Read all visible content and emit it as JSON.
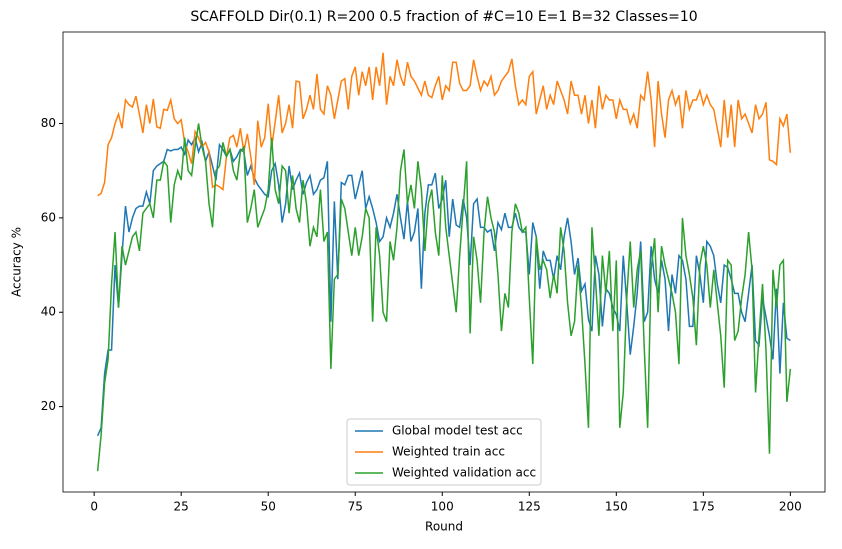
{
  "chart_data": {
    "type": "line",
    "title": "SCAFFOLD Dir(0.1) R=200 0.5 fraction of #C=10 E=1 B=32  Classes=10",
    "x_label": "Round",
    "y_label": "Accuracy %",
    "x": [
      1,
      2,
      3,
      4,
      5,
      6,
      7,
      8,
      9,
      10,
      11,
      12,
      13,
      14,
      15,
      16,
      17,
      18,
      19,
      20,
      21,
      22,
      23,
      24,
      25,
      26,
      27,
      28,
      29,
      30,
      31,
      32,
      33,
      34,
      35,
      36,
      37,
      38,
      39,
      40,
      41,
      42,
      43,
      44,
      45,
      46,
      47,
      48,
      49,
      50,
      51,
      52,
      53,
      54,
      55,
      56,
      57,
      58,
      59,
      60,
      61,
      62,
      63,
      64,
      65,
      66,
      67,
      68,
      69,
      70,
      71,
      72,
      73,
      74,
      75,
      76,
      77,
      78,
      79,
      80,
      81,
      82,
      83,
      84,
      85,
      86,
      87,
      88,
      89,
      90,
      91,
      92,
      93,
      94,
      95,
      96,
      97,
      98,
      99,
      100,
      101,
      102,
      103,
      104,
      105,
      106,
      107,
      108,
      109,
      110,
      111,
      112,
      113,
      114,
      115,
      116,
      117,
      118,
      119,
      120,
      121,
      122,
      123,
      124,
      125,
      126,
      127,
      128,
      129,
      130,
      131,
      132,
      133,
      134,
      135,
      136,
      137,
      138,
      139,
      140,
      141,
      142,
      143,
      144,
      145,
      146,
      147,
      148,
      149,
      150,
      151,
      152,
      153,
      154,
      155,
      156,
      157,
      158,
      159,
      160,
      161,
      162,
      163,
      164,
      165,
      166,
      167,
      168,
      169,
      170,
      171,
      172,
      173,
      174,
      175,
      176,
      177,
      178,
      179,
      180,
      181,
      182,
      183,
      184,
      185,
      186,
      187,
      188,
      189,
      190,
      191,
      192,
      193,
      194,
      195,
      196,
      197,
      198,
      199,
      200
    ],
    "series": [
      {
        "name": "Global model test acc",
        "color": "#1f77b4",
        "values": [
          13.8,
          15.5,
          27,
          32,
          32,
          50,
          41,
          52,
          62.5,
          57,
          60,
          62,
          62.5,
          62.5,
          65.5,
          63,
          70,
          71,
          71.5,
          72,
          74.5,
          74.2,
          74.5,
          74.5,
          75,
          73.5,
          76.5,
          75.5,
          77,
          74,
          76,
          72,
          74,
          71,
          68,
          75.5,
          74.5,
          73,
          74.5,
          72,
          73,
          74.5,
          74,
          69,
          71,
          68.5,
          67,
          66,
          65,
          64.5,
          70,
          71.5,
          67,
          59,
          63,
          71,
          66,
          68,
          69.5,
          65,
          67.5,
          69,
          65,
          66,
          68,
          68.5,
          72,
          38,
          63.5,
          47,
          67.5,
          67,
          69,
          69,
          64,
          67,
          70,
          62,
          64.5,
          62,
          59,
          55,
          56,
          60,
          58,
          61,
          65,
          60,
          55.5,
          63.5,
          55,
          57,
          62,
          45,
          61,
          67,
          67,
          69.5,
          62,
          64,
          68,
          56,
          64,
          58.5,
          58,
          64,
          60,
          50,
          63,
          64,
          58,
          58,
          57,
          57.5,
          53,
          59,
          57.5,
          61,
          58,
          58,
          61,
          58,
          57,
          57,
          48,
          59,
          56,
          45,
          53,
          51,
          51,
          47,
          52,
          49,
          56,
          60,
          55,
          48,
          51.5,
          44.5,
          46,
          38.5,
          36,
          52,
          48,
          37,
          45,
          44,
          41,
          39.5,
          36,
          52,
          42,
          31,
          37,
          44,
          55,
          38,
          40,
          54,
          47,
          44,
          51,
          47,
          36,
          48,
          44,
          52,
          51,
          47,
          37,
          37,
          52,
          48,
          42,
          55,
          54,
          52,
          46,
          42,
          50,
          49.5,
          47,
          44,
          44,
          40,
          38,
          44,
          50,
          34,
          33,
          43,
          39,
          35,
          30,
          45,
          27,
          42,
          34.5,
          34
        ]
      },
      {
        "name": "Weighted train acc",
        "color": "#ff7f0e",
        "values": [
          64.7,
          65.2,
          67.5,
          75.5,
          77,
          80,
          82,
          79,
          85,
          84,
          83.5,
          85.8,
          82,
          78,
          84,
          80,
          85.2,
          79.3,
          79,
          83,
          82.8,
          85,
          81,
          80,
          80.8,
          76,
          74,
          71.5,
          78.3,
          77,
          75,
          76,
          74,
          66.5,
          67,
          66.6,
          66,
          73,
          77,
          77.5,
          75,
          79,
          74,
          77.8,
          73,
          67,
          80.6,
          75,
          77,
          84.2,
          75,
          80.3,
          86,
          78,
          80,
          84,
          79,
          89,
          88.8,
          81,
          83,
          86,
          83,
          90.5,
          83,
          82,
          88,
          86,
          81,
          85,
          89,
          89.5,
          83,
          90,
          92,
          86,
          91,
          88,
          92,
          85,
          92,
          88,
          95,
          84,
          90,
          88,
          93.5,
          90,
          88,
          93,
          90,
          89,
          87.5,
          86,
          89,
          86,
          85.5,
          88,
          90,
          85,
          88,
          87,
          93,
          93,
          88.5,
          87,
          87,
          88,
          93.5,
          90,
          87,
          89,
          88,
          90,
          86,
          87,
          89,
          90,
          91,
          93.7,
          88,
          84,
          85,
          84,
          90,
          91,
          82,
          85,
          88,
          83,
          86,
          84,
          89,
          87,
          85,
          82,
          89,
          86,
          86,
          82,
          86,
          80,
          85,
          79,
          88,
          83,
          86,
          85,
          85,
          81,
          85,
          83,
          83,
          80,
          82,
          79,
          86,
          85,
          91,
          85,
          75,
          89,
          82,
          77,
          85,
          87,
          84,
          86,
          79,
          87,
          83,
          85,
          85,
          87,
          84,
          86,
          84,
          83,
          79,
          75,
          85,
          77,
          84,
          75,
          85,
          81,
          82,
          80,
          78,
          84,
          81,
          82,
          84.5,
          72.3,
          72,
          71.3,
          81,
          79.5,
          82,
          73.8
        ]
      },
      {
        "name": "Weighted validation acc",
        "color": "#2ca02c",
        "values": [
          6.3,
          14,
          25,
          30,
          46,
          57,
          41,
          54,
          50,
          53,
          56,
          57,
          53,
          61,
          62,
          63,
          60,
          68,
          68,
          72,
          71,
          59,
          67,
          70,
          68,
          77,
          70,
          69,
          75,
          80,
          75,
          72,
          63,
          58,
          70,
          71,
          76,
          73,
          74.5,
          70,
          68,
          74,
          75,
          59,
          62,
          66,
          58,
          60,
          62,
          66,
          77,
          66,
          63,
          71,
          70,
          61,
          69,
          62,
          59,
          68,
          63,
          54,
          58,
          56,
          66,
          55,
          57,
          28,
          47,
          48,
          64,
          62,
          57,
          52,
          58,
          52,
          56,
          62,
          60,
          38,
          58,
          52,
          40,
          38,
          55,
          51,
          58,
          70,
          74.5,
          63,
          67,
          62,
          72,
          66,
          53,
          63,
          66,
          57,
          52,
          69,
          58,
          52,
          46,
          40,
          52,
          62,
          72,
          35.5,
          56,
          51,
          42,
          57,
          64.5,
          60,
          57,
          48,
          36,
          44,
          41,
          57,
          63,
          61,
          57,
          58,
          43,
          29,
          56,
          49,
          51,
          49,
          43,
          48,
          44,
          58,
          53,
          42,
          35,
          38,
          50,
          41,
          29,
          15.5,
          58,
          47,
          35,
          52,
          44,
          53,
          36,
          51,
          15.5,
          23,
          43,
          55,
          41,
          49,
          53,
          33,
          15.5,
          49,
          55.7,
          40,
          54,
          50,
          47,
          44,
          40,
          29,
          60,
          52,
          48,
          43,
          33,
          50,
          54,
          50,
          41,
          49,
          42,
          35,
          24,
          51,
          50,
          34,
          36,
          43,
          48,
          57,
          49,
          23,
          35,
          46,
          32,
          10,
          49,
          41,
          50,
          51,
          21,
          28
        ]
      }
    ],
    "xlim": [
      -8.95,
      209.95
    ],
    "ylim": [
      1.9,
      99.4
    ],
    "xticks": [
      0,
      25,
      50,
      75,
      100,
      125,
      150,
      175,
      200
    ],
    "yticks": [
      20,
      40,
      60,
      80
    ],
    "legend": "lower center"
  }
}
